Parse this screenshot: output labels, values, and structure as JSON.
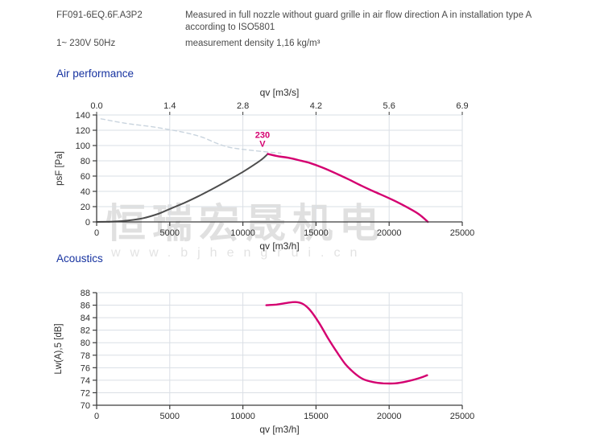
{
  "header": {
    "model": "FF091-6EQ.6F.A3P2",
    "power": "1~ 230V 50Hz",
    "description": "Measured in full nozzle without guard grille in air flow direction A in installation type A according to ISO5801",
    "density": "measurement density 1,16 kg/m³"
  },
  "sections": {
    "air_title": "Air performance",
    "acoustics_title": "Acoustics"
  },
  "watermark": {
    "text_cn": "恒瑞宏晟机电",
    "text_url": "www.bjhengrui.cn"
  },
  "colors": {
    "heading_blue": "#1733a0",
    "curve_magenta": "#d40070",
    "curve_dark": "#4d4d4d",
    "curve_dashed": "#c9d4de",
    "grid": "#dadfe5",
    "axis": "#3c3c3c",
    "tick_text": "#2e2e2e",
    "watermark": "#e0e0e0"
  },
  "chart_data": [
    {
      "id": "air_performance",
      "type": "line",
      "title": "Air performance",
      "xlabel": "qv [m3/h]",
      "xlabel_top": "qv [m3/s]",
      "ylabel": "psF [Pa]",
      "xlim": [
        0,
        25000
      ],
      "ylim": [
        0,
        140
      ],
      "x_ticks": [
        0,
        5000,
        10000,
        15000,
        20000,
        25000
      ],
      "x_tick_labels": [
        "0",
        "5000",
        "10000",
        "15000",
        "20000",
        "25000"
      ],
      "x_top_tick_labels": [
        "0.0",
        "1.4",
        "2.8",
        "4.2",
        "5.6",
        "6.9"
      ],
      "y_ticks": [
        0,
        20,
        40,
        60,
        80,
        100,
        120,
        140
      ],
      "grid": true,
      "legend": "none",
      "annotation": {
        "lines": [
          "230",
          "V"
        ],
        "x": 11340,
        "y": 110,
        "color": "#d40070"
      },
      "series": [
        {
          "name": "max-pressure-dashed-curve",
          "color": "#c9d4de",
          "dash": "5 4",
          "width": 1.4,
          "points": [
            [
              300,
              135
            ],
            [
              2000,
              129
            ],
            [
              4000,
              124
            ],
            [
              6000,
              117
            ],
            [
              7200,
              111
            ],
            [
              8200,
              103
            ],
            [
              9000,
              98
            ],
            [
              9800,
              95.5
            ],
            [
              10700,
              93.5
            ],
            [
              11700,
              91.5
            ],
            [
              12600,
              90
            ]
          ]
        },
        {
          "name": "system-resistance-curve",
          "color": "#4d4d4d",
          "dash": null,
          "width": 2,
          "points": [
            [
              0,
              0
            ],
            [
              1200,
              0.5
            ],
            [
              2200,
              2
            ],
            [
              3200,
              5
            ],
            [
              4200,
              10.5
            ],
            [
              5000,
              17
            ],
            [
              6000,
              25
            ],
            [
              7000,
              34
            ],
            [
              8000,
              44
            ],
            [
              9000,
              54.5
            ],
            [
              10000,
              65.5
            ],
            [
              10700,
              74
            ],
            [
              11300,
              82
            ],
            [
              11700,
              89
            ]
          ]
        },
        {
          "name": "fan-curve-230V",
          "color": "#d40070",
          "dash": null,
          "width": 2.4,
          "points": [
            [
              11700,
              89
            ],
            [
              12400,
              86
            ],
            [
              13100,
              84
            ],
            [
              13800,
              81
            ],
            [
              14600,
              77
            ],
            [
              15400,
              71.5
            ],
            [
              16300,
              64
            ],
            [
              17200,
              56
            ],
            [
              18100,
              47.5
            ],
            [
              19000,
              39.5
            ],
            [
              20000,
              31
            ],
            [
              21000,
              21.5
            ],
            [
              22000,
              10.5
            ],
            [
              22650,
              0
            ]
          ]
        }
      ]
    },
    {
      "id": "acoustics",
      "type": "line",
      "title": "Acoustics",
      "xlabel": "qv [m3/h]",
      "ylabel": "Lw(A),5 [dB]",
      "xlim": [
        0,
        25000
      ],
      "ylim": [
        70,
        88
      ],
      "x_ticks": [
        0,
        5000,
        10000,
        15000,
        20000,
        25000
      ],
      "x_tick_labels": [
        "0",
        "5000",
        "10000",
        "15000",
        "20000",
        "25000"
      ],
      "y_ticks": [
        70,
        72,
        74,
        76,
        78,
        80,
        82,
        84,
        86,
        88
      ],
      "grid": true,
      "legend": "none",
      "series": [
        {
          "name": "sound-power-curve-230V",
          "color": "#d40070",
          "dash": null,
          "width": 2.4,
          "points": [
            [
              11600,
              86.0
            ],
            [
              12300,
              86.1
            ],
            [
              13000,
              86.35
            ],
            [
              13600,
              86.5
            ],
            [
              14100,
              86.2
            ],
            [
              14600,
              85.2
            ],
            [
              15200,
              83.2
            ],
            [
              15800,
              80.8
            ],
            [
              16400,
              78.6
            ],
            [
              17000,
              76.6
            ],
            [
              17600,
              75.2
            ],
            [
              18200,
              74.2
            ],
            [
              18900,
              73.7
            ],
            [
              19600,
              73.5
            ],
            [
              20400,
              73.5
            ],
            [
              21200,
              73.8
            ],
            [
              22000,
              74.3
            ],
            [
              22600,
              74.8
            ]
          ]
        }
      ]
    }
  ]
}
